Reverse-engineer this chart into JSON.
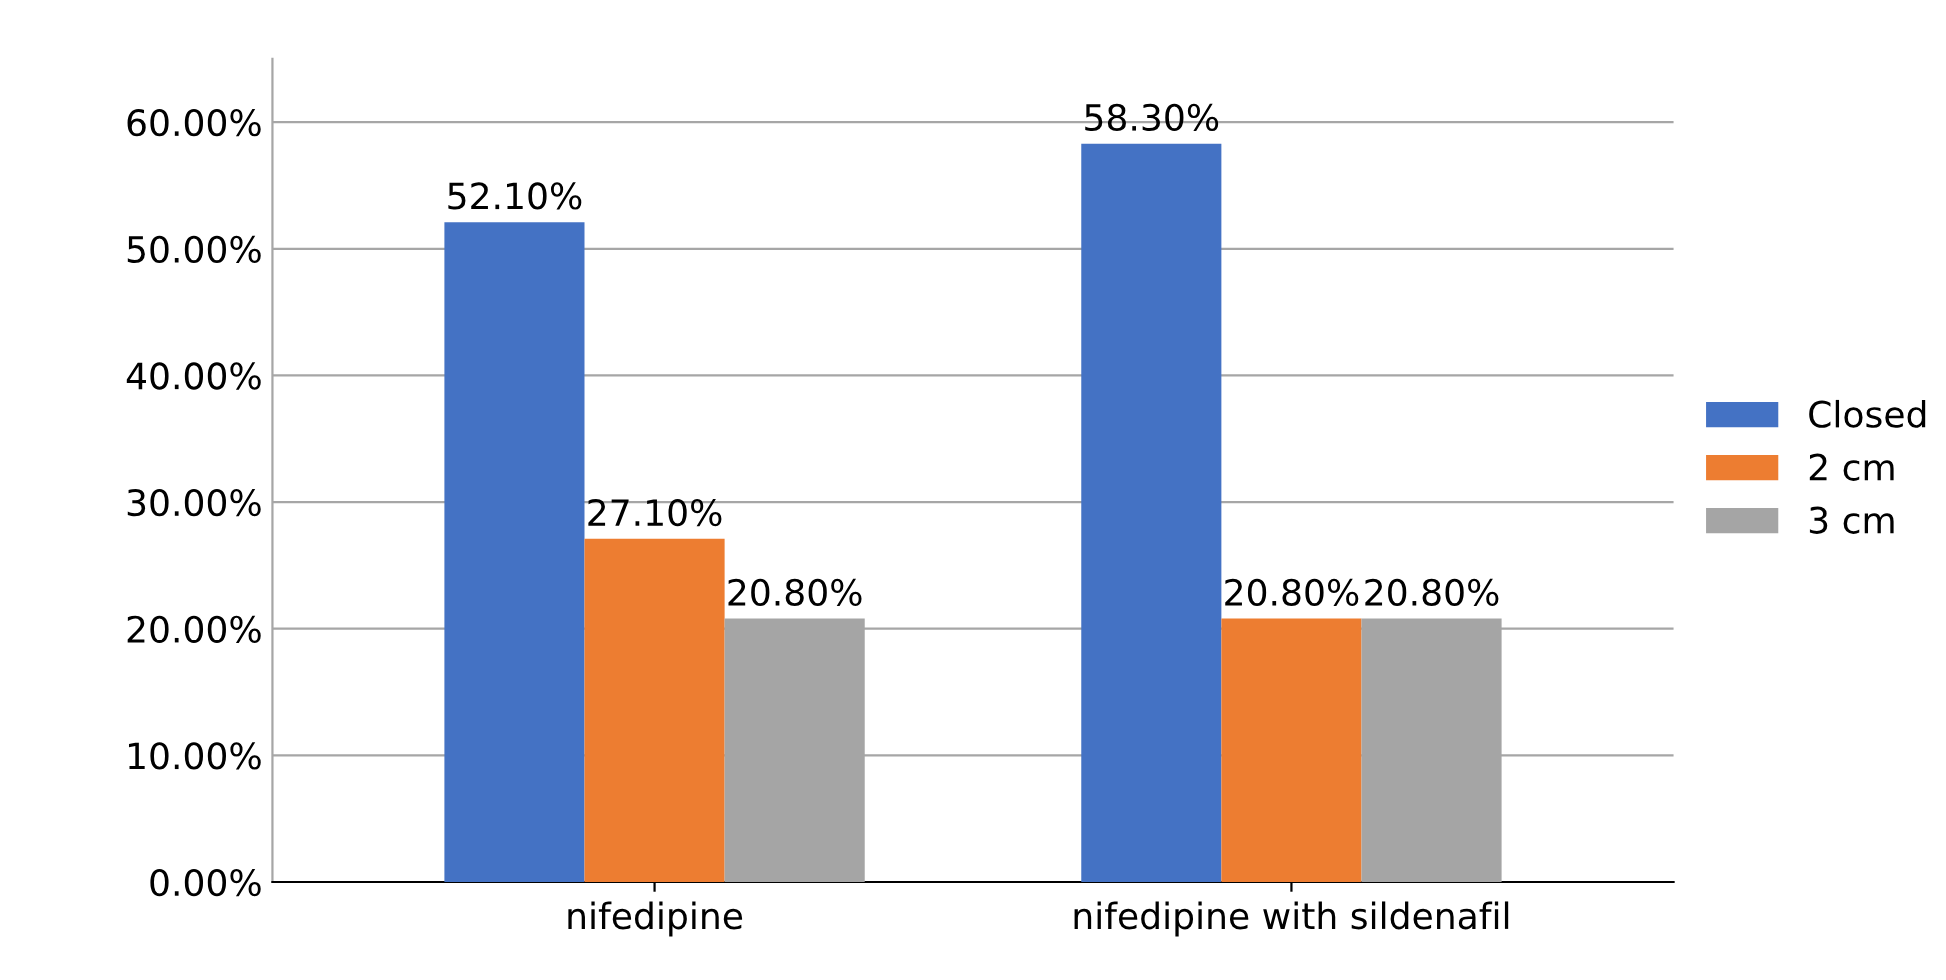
{
  "chart_data": {
    "type": "bar",
    "categories": [
      "nifedipine",
      "nifedipine with sildenafil"
    ],
    "series": [
      {
        "name": "Closed",
        "color": "#4472c4",
        "values": [
          52.1,
          58.3
        ],
        "value_labels": [
          "52.10%",
          "58.30%"
        ]
      },
      {
        "name": "2 cm",
        "color": "#ed7d31",
        "values": [
          27.1,
          20.8
        ],
        "value_labels": [
          "27.10%",
          "20.80%"
        ]
      },
      {
        "name": "3 cm",
        "color": "#a5a5a5",
        "values": [
          20.8,
          20.8
        ],
        "value_labels": [
          "20.80%",
          "20.80%"
        ]
      }
    ],
    "ylim": [
      0,
      65
    ],
    "yticks": [
      {
        "value": 0,
        "label": "0.00%"
      },
      {
        "value": 10,
        "label": "10.00%"
      },
      {
        "value": 20,
        "label": "20.00%"
      },
      {
        "value": 30,
        "label": "30.00%"
      },
      {
        "value": 40,
        "label": "40.00%"
      },
      {
        "value": 50,
        "label": "50.00%"
      },
      {
        "value": 60,
        "label": "60.00%"
      }
    ],
    "grid": "y",
    "legend": "right"
  }
}
